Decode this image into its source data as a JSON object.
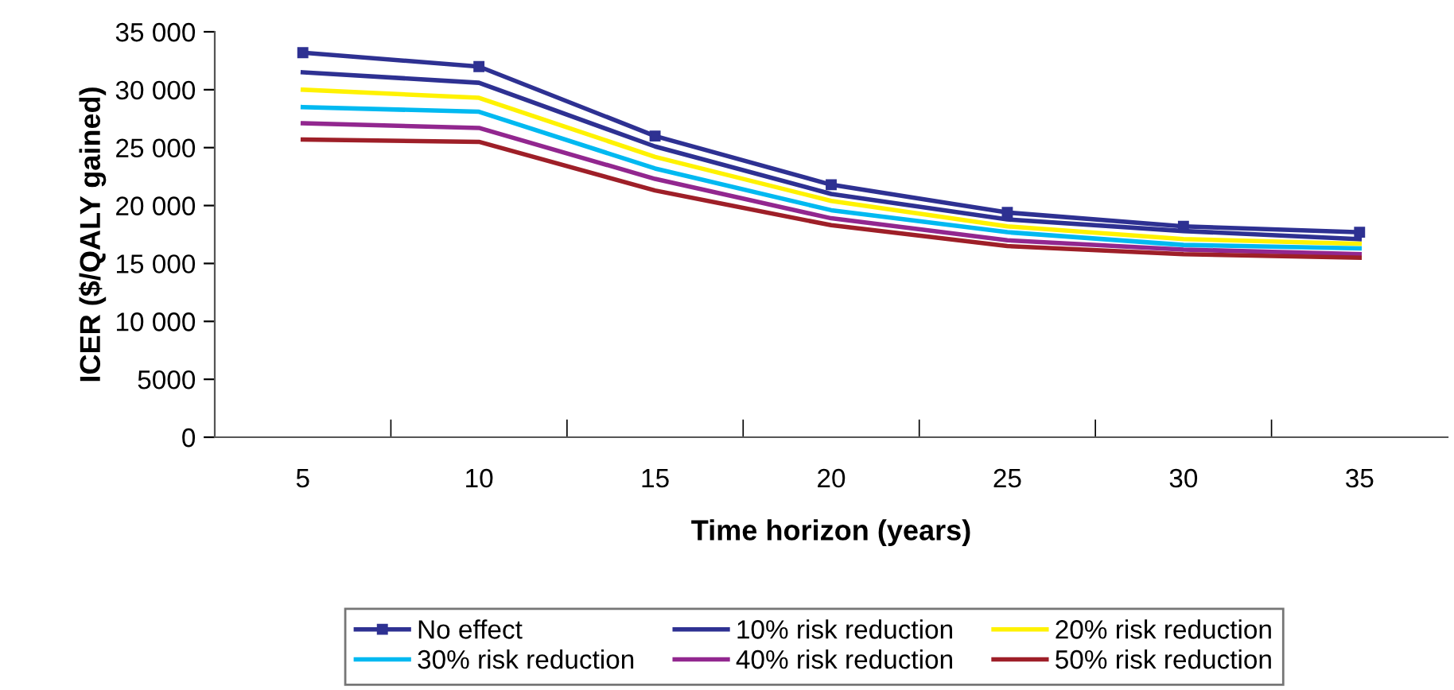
{
  "chart_data": {
    "type": "line",
    "xlabel": "Time horizon (years)",
    "ylabel": "ICER ($/QALY gained)",
    "categories": [
      "5",
      "10",
      "15",
      "20",
      "25",
      "30",
      "35"
    ],
    "ylim": [
      0,
      35000
    ],
    "yticks": [
      0,
      5000,
      {
        "value": 10000,
        "label": "10 000"
      },
      {
        "value": 15000,
        "label": "15 000"
      },
      {
        "value": 20000,
        "label": "20 000"
      },
      {
        "value": 25000,
        "label": "25 000"
      },
      {
        "value": 30000,
        "label": "30 000"
      },
      {
        "value": 35000,
        "label": "35 000"
      }
    ],
    "grid": false,
    "legend": "bottom",
    "line_style": "solid",
    "series": [
      {
        "name": "No effect",
        "color": "#2e3192",
        "marker": "square",
        "values": [
          33200,
          32000,
          26000,
          21800,
          19400,
          18200,
          17700
        ]
      },
      {
        "name": "10% risk reduction",
        "color": "#2e3192",
        "values": [
          31500,
          30600,
          25100,
          21000,
          18800,
          17800,
          17100
        ]
      },
      {
        "name": "20% risk reduction",
        "color": "#fff200",
        "values": [
          30000,
          29300,
          24200,
          20400,
          18200,
          17100,
          16700
        ]
      },
      {
        "name": "30% risk reduction",
        "color": "#00b9f1",
        "values": [
          28500,
          28100,
          23200,
          19600,
          17700,
          16600,
          16300
        ]
      },
      {
        "name": "40% risk reduction",
        "color": "#92278f",
        "values": [
          27100,
          26700,
          22300,
          18900,
          17000,
          16200,
          15800
        ]
      },
      {
        "name": "50% risk reduction",
        "color": "#9e1f28",
        "values": [
          25700,
          25500,
          21300,
          18300,
          16500,
          15800,
          15500
        ]
      }
    ]
  }
}
